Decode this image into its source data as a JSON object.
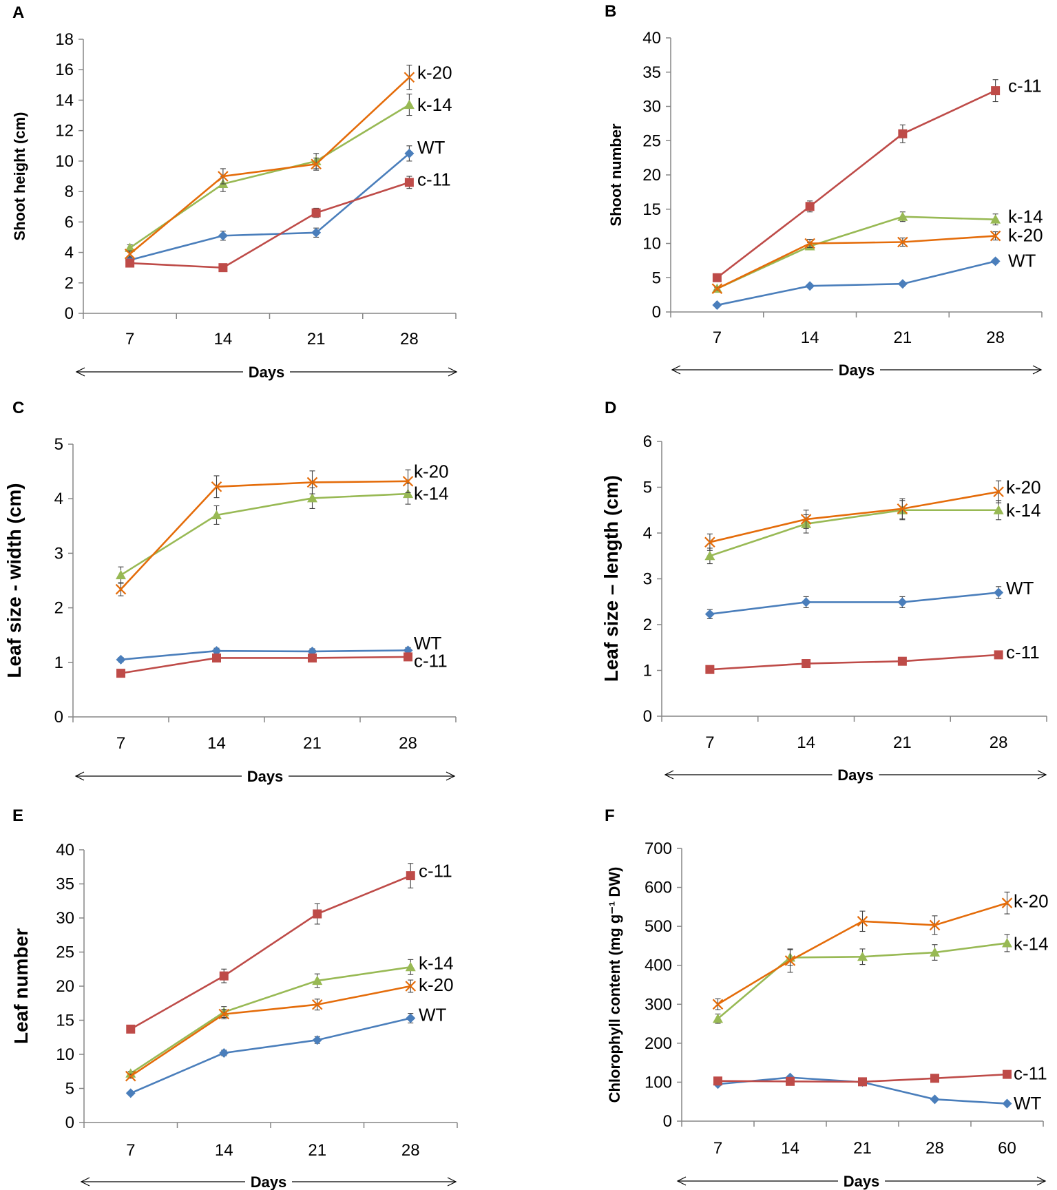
{
  "figure": {
    "colors": {
      "WT": "#4a7ebb",
      "c-11": "#be4b48",
      "k-14": "#98b954",
      "k-20": "#e46c0a",
      "axis": "#868686",
      "text": "#000000"
    },
    "markers": {
      "WT": "diamond",
      "c-11": "square",
      "k-14": "triangle",
      "k-20": "x"
    }
  },
  "chart_data": [
    {
      "panel": "A",
      "type": "line",
      "title": "",
      "xlabel": "Days",
      "ylabel": "Shoot height (cm)",
      "categories": [
        "7",
        "14",
        "21",
        "28"
      ],
      "ylim": [
        0,
        18
      ],
      "yticks": [
        0,
        2,
        4,
        6,
        8,
        10,
        12,
        14,
        16,
        18
      ],
      "grid": false,
      "series": [
        {
          "name": "WT",
          "values": [
            3.5,
            5.1,
            5.3,
            10.5
          ],
          "errors": [
            0.2,
            0.3,
            0.3,
            0.5
          ]
        },
        {
          "name": "c-11",
          "values": [
            3.3,
            3.0,
            6.6,
            8.6
          ],
          "errors": [
            0.15,
            0.15,
            0.3,
            0.4
          ]
        },
        {
          "name": "k-14",
          "values": [
            4.3,
            8.5,
            10.0,
            13.7
          ],
          "errors": [
            0.2,
            0.5,
            0.5,
            0.7
          ]
        },
        {
          "name": "k-20",
          "values": [
            3.9,
            9.0,
            9.8,
            15.5
          ],
          "errors": [
            0.2,
            0.5,
            0.4,
            0.8
          ]
        }
      ],
      "end_labels": [
        {
          "series": "k-20",
          "text": "k-20",
          "y": 15.8
        },
        {
          "series": "k-14",
          "text": "k-14",
          "y": 13.7
        },
        {
          "series": "WT",
          "text": "WT",
          "y": 10.9
        },
        {
          "series": "c-11",
          "text": "c-11",
          "y": 8.8
        }
      ]
    },
    {
      "panel": "B",
      "type": "line",
      "title": "",
      "xlabel": "Days",
      "ylabel": "Shoot number",
      "categories": [
        "7",
        "14",
        "21",
        "28"
      ],
      "ylim": [
        0,
        40
      ],
      "yticks": [
        0,
        5,
        10,
        15,
        20,
        25,
        30,
        35,
        40
      ],
      "grid": false,
      "series": [
        {
          "name": "WT",
          "values": [
            1.0,
            3.8,
            4.1,
            7.4
          ],
          "errors": [
            0.1,
            0.2,
            0.2,
            0.3
          ]
        },
        {
          "name": "c-11",
          "values": [
            5.0,
            15.4,
            26.0,
            32.3
          ],
          "errors": [
            0.3,
            0.8,
            1.3,
            1.6
          ]
        },
        {
          "name": "k-14",
          "values": [
            3.4,
            9.6,
            13.9,
            13.5
          ],
          "errors": [
            0.2,
            0.5,
            0.7,
            0.8
          ]
        },
        {
          "name": "k-20",
          "values": [
            3.4,
            10.0,
            10.2,
            11.1
          ],
          "errors": [
            0.2,
            0.6,
            0.6,
            0.6
          ]
        }
      ],
      "end_labels": [
        {
          "series": "c-11",
          "text": "c-11",
          "y": 33.0
        },
        {
          "series": "k-14",
          "text": "k-14",
          "y": 13.9
        },
        {
          "series": "k-20",
          "text": "k-20",
          "y": 11.2
        },
        {
          "series": "WT",
          "text": "WT",
          "y": 7.5
        }
      ]
    },
    {
      "panel": "C",
      "type": "line",
      "title": "",
      "xlabel": "Days",
      "ylabel": "Leaf size - width (cm)",
      "categories": [
        "7",
        "14",
        "21",
        "28"
      ],
      "ylim": [
        0,
        5
      ],
      "yticks": [
        0,
        1,
        2,
        3,
        4,
        5
      ],
      "grid": false,
      "series": [
        {
          "name": "WT",
          "values": [
            1.05,
            1.21,
            1.2,
            1.22
          ],
          "errors": [
            0.04,
            0.05,
            0.05,
            0.05
          ]
        },
        {
          "name": "c-11",
          "values": [
            0.8,
            1.08,
            1.08,
            1.1
          ],
          "errors": [
            0.03,
            0.04,
            0.04,
            0.04
          ]
        },
        {
          "name": "k-14",
          "values": [
            2.6,
            3.7,
            4.01,
            4.09
          ],
          "errors": [
            0.15,
            0.17,
            0.19,
            0.19
          ]
        },
        {
          "name": "k-20",
          "values": [
            2.34,
            4.22,
            4.3,
            4.32
          ],
          "errors": [
            0.12,
            0.2,
            0.21,
            0.21
          ]
        }
      ],
      "end_labels": [
        {
          "series": "k-20",
          "text": "k-20",
          "y": 4.5
        },
        {
          "series": "k-14",
          "text": "k-14",
          "y": 4.1
        },
        {
          "series": "WT",
          "text": "WT",
          "y": 1.35
        },
        {
          "series": "c-11",
          "text": "c-11",
          "y": 1.03
        }
      ]
    },
    {
      "panel": "D",
      "type": "line",
      "title": "",
      "xlabel": "Days",
      "ylabel": "Leaf size – length (cm)",
      "categories": [
        "7",
        "14",
        "21",
        "28"
      ],
      "ylim": [
        0,
        6
      ],
      "yticks": [
        0,
        1,
        2,
        3,
        4,
        5,
        6
      ],
      "grid": false,
      "series": [
        {
          "name": "WT",
          "values": [
            2.23,
            2.49,
            2.49,
            2.7
          ],
          "errors": [
            0.1,
            0.12,
            0.12,
            0.13
          ]
        },
        {
          "name": "c-11",
          "values": [
            1.02,
            1.15,
            1.2,
            1.34
          ],
          "errors": [
            0.04,
            0.05,
            0.05,
            0.05
          ]
        },
        {
          "name": "k-14",
          "values": [
            3.5,
            4.2,
            4.5,
            4.5
          ],
          "errors": [
            0.17,
            0.2,
            0.21,
            0.21
          ]
        },
        {
          "name": "k-20",
          "values": [
            3.8,
            4.3,
            4.53,
            4.9
          ],
          "errors": [
            0.18,
            0.2,
            0.22,
            0.24
          ]
        }
      ],
      "end_labels": [
        {
          "series": "k-20",
          "text": "k-20",
          "y": 5.0
        },
        {
          "series": "k-14",
          "text": "k-14",
          "y": 4.5
        },
        {
          "series": "WT",
          "text": "WT",
          "y": 2.8
        },
        {
          "series": "c-11",
          "text": "c-11",
          "y": 1.4
        }
      ]
    },
    {
      "panel": "E",
      "type": "line",
      "title": "",
      "xlabel": "Days",
      "ylabel": "Leaf number",
      "categories": [
        "7",
        "14",
        "21",
        "28"
      ],
      "ylim": [
        0,
        40
      ],
      "yticks": [
        0,
        5,
        10,
        15,
        20,
        25,
        30,
        35,
        40
      ],
      "grid": false,
      "series": [
        {
          "name": "WT",
          "values": [
            4.3,
            10.2,
            12.1,
            15.3
          ],
          "errors": [
            0.2,
            0.4,
            0.5,
            0.7
          ]
        },
        {
          "name": "c-11",
          "values": [
            13.7,
            21.5,
            30.6,
            36.2
          ],
          "errors": [
            0.4,
            1.0,
            1.5,
            1.8
          ]
        },
        {
          "name": "k-14",
          "values": [
            7.2,
            16.2,
            20.8,
            22.8
          ],
          "errors": [
            0.3,
            0.8,
            1.0,
            1.1
          ]
        },
        {
          "name": "k-20",
          "values": [
            6.8,
            15.9,
            17.3,
            20.0
          ],
          "errors": [
            0.3,
            0.7,
            0.8,
            0.9
          ]
        }
      ],
      "end_labels": [
        {
          "series": "c-11",
          "text": "c-11",
          "y": 36.9
        },
        {
          "series": "k-14",
          "text": "k-14",
          "y": 23.4
        },
        {
          "series": "k-20",
          "text": "k-20",
          "y": 20.2
        },
        {
          "series": "WT",
          "text": "WT",
          "y": 15.8
        }
      ]
    },
    {
      "panel": "F",
      "type": "line",
      "title": "",
      "xlabel": "Days",
      "ylabel": "Chlorophyll content (mg g⁻¹ DW)",
      "categories": [
        "7",
        "14",
        "21",
        "28",
        "60"
      ],
      "ylim": [
        0,
        700
      ],
      "yticks": [
        0,
        100,
        200,
        300,
        400,
        500,
        600,
        700
      ],
      "grid": false,
      "series": [
        {
          "name": "WT",
          "values": [
            95,
            112,
            100,
            56,
            45
          ],
          "errors": [
            4,
            5,
            4,
            3,
            3
          ]
        },
        {
          "name": "c-11",
          "values": [
            103,
            102,
            101,
            110,
            120
          ],
          "errors": [
            4,
            4,
            4,
            4,
            5
          ]
        },
        {
          "name": "k-14",
          "values": [
            263,
            420,
            422,
            433,
            457
          ],
          "errors": [
            12,
            20,
            20,
            20,
            22
          ]
        },
        {
          "name": "k-20",
          "values": [
            300,
            412,
            513,
            503,
            560
          ],
          "errors": [
            14,
            30,
            26,
            24,
            28
          ]
        }
      ],
      "end_labels": [
        {
          "series": "k-20",
          "text": "k-20",
          "y": 565
        },
        {
          "series": "k-14",
          "text": "k-14",
          "y": 455
        },
        {
          "series": "c-11",
          "text": "c-11",
          "y": 123
        },
        {
          "series": "WT",
          "text": "WT",
          "y": 46
        }
      ]
    }
  ]
}
